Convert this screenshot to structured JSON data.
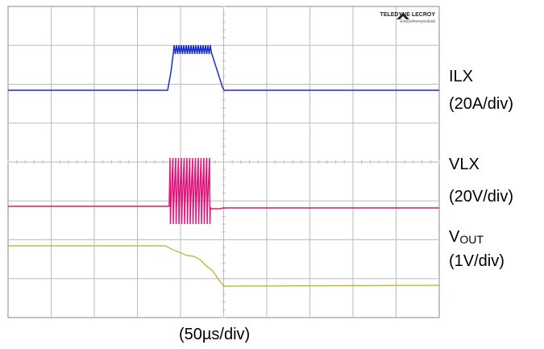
{
  "logo": {
    "brand": "TELEDYNE LECROY",
    "tagline": "Everywhereyoulook"
  },
  "channels": [
    {
      "name": "ILX",
      "scale": "(20A/div)"
    },
    {
      "name": "VLX",
      "scale": "(20V/div)"
    },
    {
      "name": "V",
      "name_sub": "OUT",
      "scale": "(1V/div)"
    }
  ],
  "timebase": "(50µs/div)"
}
